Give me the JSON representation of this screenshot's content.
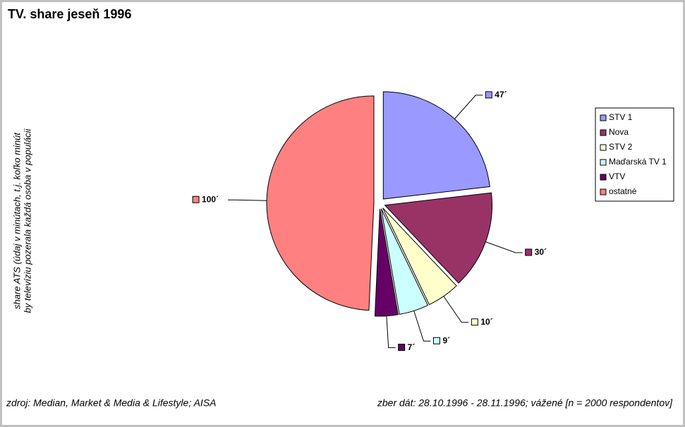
{
  "chart_data": {
    "type": "pie",
    "title": "TV. share jeseň 1996",
    "categories": [
      "STV 1",
      "Nova",
      "STV 2",
      "Maďarská TV 1",
      "VTV",
      "ostatné"
    ],
    "values": [
      47,
      30,
      10,
      9,
      7,
      100
    ],
    "value_labels": [
      "47´",
      "30´",
      "10´",
      "9´",
      "7´",
      "100´"
    ],
    "colors": [
      "#9999ff",
      "#993366",
      "#ffffcc",
      "#ccffff",
      "#660066",
      "#ff8080"
    ],
    "legend": "right",
    "ylabel": [
      "share ATS (údaj v minútach, t.j. koľko minút",
      "by televíziu pozerala každá osoba v populácii"
    ],
    "source": "zdroj: Median, Market & Media & Lifestyle; AISA",
    "note": "zber dát: 28.10.1996 - 28.11.1996; vážené [n = 2000 respondentov]"
  }
}
